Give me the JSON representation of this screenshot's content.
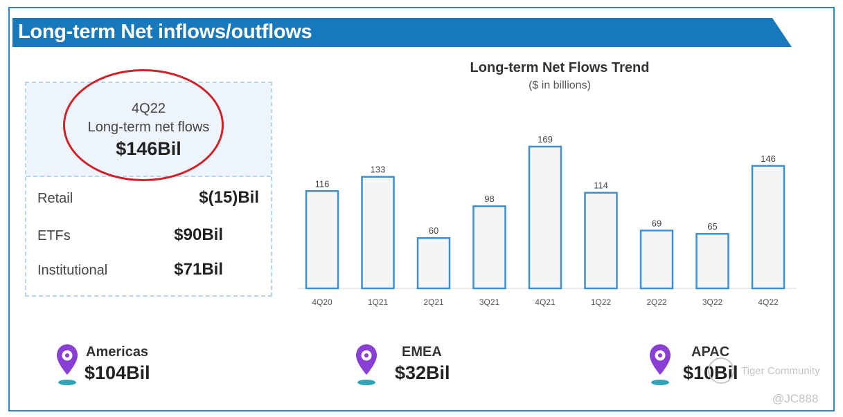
{
  "header": {
    "title": "Long-term Net inflows/outflows",
    "color": "#1778bb"
  },
  "summary": {
    "quarter": "4Q22",
    "label": "Long-term net flows",
    "value": "$146Bil",
    "highlight_color": "#d12128",
    "breakdown": [
      {
        "label": "Retail",
        "value": "$(15)Bil"
      },
      {
        "label": "ETFs",
        "value": "$90Bil"
      },
      {
        "label": "Institutional",
        "value": "$71Bil"
      }
    ]
  },
  "chart_data": {
    "type": "bar",
    "title": "Long-term Net Flows Trend",
    "subtitle": "($ in billions)",
    "categories": [
      "4Q20",
      "1Q21",
      "2Q21",
      "3Q21",
      "4Q21",
      "1Q22",
      "2Q22",
      "3Q22",
      "4Q22"
    ],
    "values": [
      116,
      133,
      60,
      98,
      169,
      114,
      69,
      65,
      146
    ],
    "data_labels": [
      "116",
      "133",
      "60",
      "98",
      "169",
      "114",
      "69",
      "65",
      "146"
    ],
    "ylim": [
      0,
      169
    ],
    "grid": false,
    "bar_fill": "#f4f5f7",
    "bar_stroke": "#3d8fd0",
    "xlabel": "",
    "ylabel": ""
  },
  "regions": [
    {
      "name": "Americas",
      "value": "$104Bil",
      "icon": "location-pin-icon"
    },
    {
      "name": "EMEA",
      "value": "$32Bil",
      "icon": "location-pin-icon"
    },
    {
      "name": "APAC",
      "value": "$10Bil",
      "icon": "location-pin-icon"
    }
  ],
  "watermark": {
    "name": "Tiger Community",
    "handle": "@JC888"
  }
}
